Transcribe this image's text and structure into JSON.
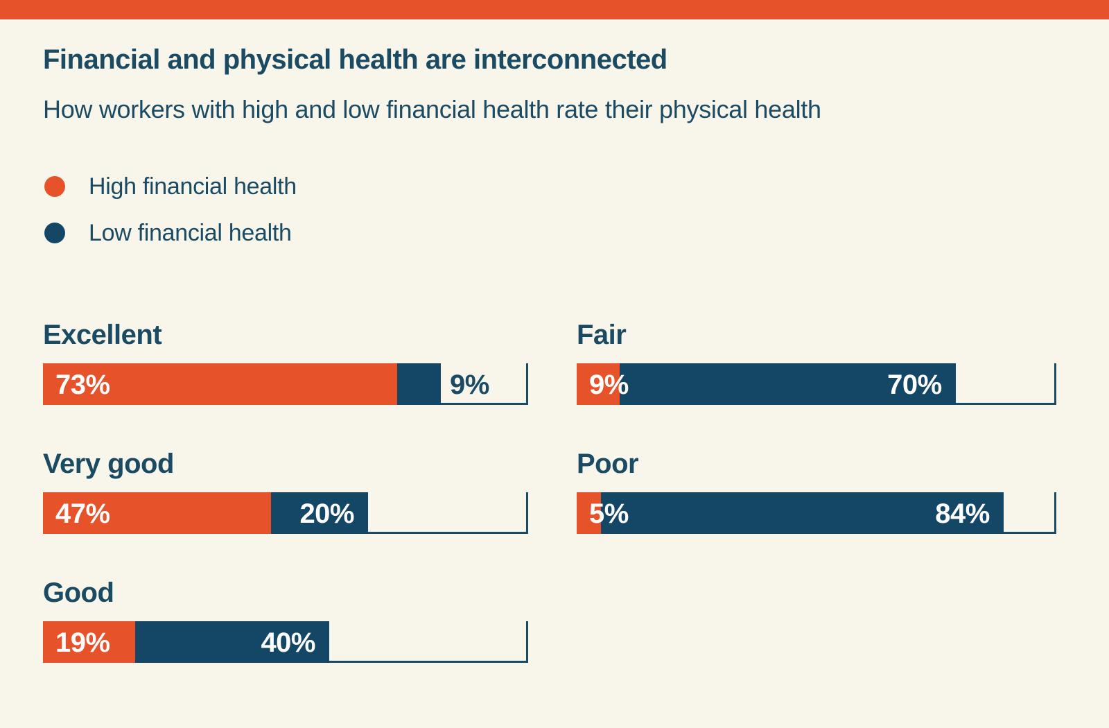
{
  "page": {
    "background": "#F8F5EA",
    "accent_bar_color": "#E6532B"
  },
  "header": {
    "title": "Financial and physical health are interconnected",
    "subtitle": "How workers with high and low financial health rate their physical health"
  },
  "legend": {
    "items": [
      {
        "label": "High financial health",
        "color": "#E6532B"
      },
      {
        "label": "Low financial health",
        "color": "#144766"
      }
    ]
  },
  "chart_data": {
    "type": "bar",
    "orientation": "horizontal",
    "title": "Financial and physical health are interconnected",
    "subtitle": "How workers with high and low financial health rate their physical health",
    "unit": "%",
    "xlim": [
      0,
      100
    ],
    "grid": false,
    "legend_position": "top-left",
    "categories": [
      "Excellent",
      "Very good",
      "Good",
      "Fair",
      "Poor"
    ],
    "series": [
      {
        "name": "High financial health",
        "color": "#E6532B",
        "values": [
          73,
          47,
          19,
          9,
          5
        ]
      },
      {
        "name": "Low financial health",
        "color": "#144766",
        "values": [
          9,
          20,
          40,
          70,
          84
        ]
      }
    ],
    "value_labels": {
      "high": [
        "73%",
        "47%",
        "19%",
        "9%",
        "5%"
      ],
      "low": [
        "9%",
        "20%",
        "40%",
        "70%",
        "84%"
      ]
    },
    "layout_hint": {
      "left_column_categories": [
        "Excellent",
        "Very good",
        "Good"
      ],
      "right_column_categories": [
        "Fair",
        "Poor"
      ],
      "axis_bracket": "baseline with end tick at 100%"
    }
  },
  "colors": {
    "text_navy": "#1B4A63",
    "bar_navy": "#144766",
    "orange": "#E6532B",
    "value_text": "#FFFFFF",
    "axis": "#1B4A63"
  }
}
